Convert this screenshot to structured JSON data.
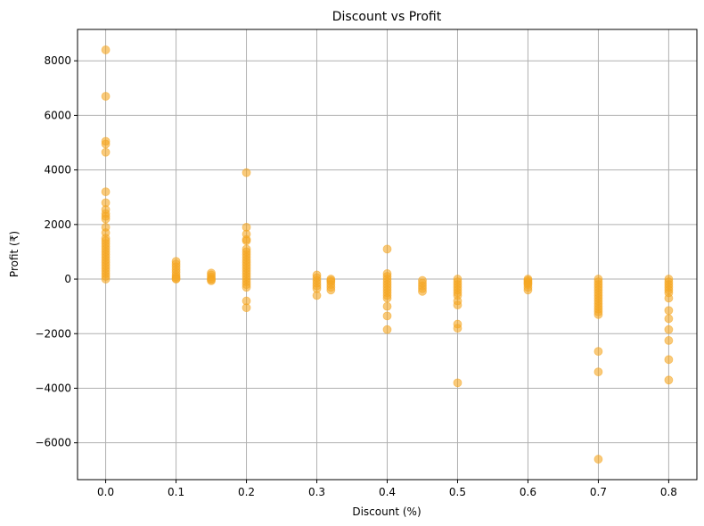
{
  "chart_data": {
    "type": "scatter",
    "title": "Discount vs Profit",
    "xlabel": "Discount (%)",
    "ylabel": "Profit (₹)",
    "xlim": [
      -0.04,
      0.84
    ],
    "ylim": [
      -7350,
      9150
    ],
    "x_ticks": [
      0.0,
      0.1,
      0.2,
      0.3,
      0.4,
      0.5,
      0.6,
      0.7,
      0.8
    ],
    "x_tick_labels": [
      "0.0",
      "0.1",
      "0.2",
      "0.3",
      "0.4",
      "0.5",
      "0.6",
      "0.7",
      "0.8"
    ],
    "y_ticks": [
      -6000,
      -4000,
      -2000,
      0,
      2000,
      4000,
      6000,
      8000
    ],
    "y_tick_labels": [
      "−6000",
      "−4000",
      "−2000",
      "0",
      "2000",
      "4000",
      "6000",
      "8000"
    ],
    "grid": true,
    "marker_color": "#f5a623",
    "marker_opacity": 0.6,
    "points": [
      [
        0.0,
        8400
      ],
      [
        0.0,
        6700
      ],
      [
        0.0,
        5050
      ],
      [
        0.0,
        4950
      ],
      [
        0.0,
        4650
      ],
      [
        0.0,
        3200
      ],
      [
        0.0,
        2800
      ],
      [
        0.0,
        2550
      ],
      [
        0.0,
        2400
      ],
      [
        0.0,
        2300
      ],
      [
        0.0,
        2200
      ],
      [
        0.0,
        1900
      ],
      [
        0.0,
        1700
      ],
      [
        0.0,
        1500
      ],
      [
        0.0,
        1400
      ],
      [
        0.0,
        1300
      ],
      [
        0.0,
        1200
      ],
      [
        0.0,
        1100
      ],
      [
        0.0,
        1000
      ],
      [
        0.0,
        900
      ],
      [
        0.0,
        800
      ],
      [
        0.0,
        700
      ],
      [
        0.0,
        600
      ],
      [
        0.0,
        500
      ],
      [
        0.0,
        400
      ],
      [
        0.0,
        300
      ],
      [
        0.0,
        200
      ],
      [
        0.0,
        100
      ],
      [
        0.0,
        0
      ],
      [
        0.1,
        650
      ],
      [
        0.1,
        550
      ],
      [
        0.1,
        450
      ],
      [
        0.1,
        350
      ],
      [
        0.1,
        250
      ],
      [
        0.1,
        150
      ],
      [
        0.1,
        80
      ],
      [
        0.1,
        20
      ],
      [
        0.1,
        0
      ],
      [
        0.15,
        220
      ],
      [
        0.15,
        150
      ],
      [
        0.15,
        80
      ],
      [
        0.15,
        20
      ],
      [
        0.15,
        -20
      ],
      [
        0.15,
        -60
      ],
      [
        0.2,
        3900
      ],
      [
        0.2,
        1900
      ],
      [
        0.2,
        1650
      ],
      [
        0.2,
        1450
      ],
      [
        0.2,
        1400
      ],
      [
        0.2,
        1100
      ],
      [
        0.2,
        1000
      ],
      [
        0.2,
        900
      ],
      [
        0.2,
        800
      ],
      [
        0.2,
        700
      ],
      [
        0.2,
        600
      ],
      [
        0.2,
        500
      ],
      [
        0.2,
        400
      ],
      [
        0.2,
        300
      ],
      [
        0.2,
        200
      ],
      [
        0.2,
        100
      ],
      [
        0.2,
        0
      ],
      [
        0.2,
        -100
      ],
      [
        0.2,
        -200
      ],
      [
        0.2,
        -300
      ],
      [
        0.2,
        -800
      ],
      [
        0.2,
        -1050
      ],
      [
        0.3,
        150
      ],
      [
        0.3,
        50
      ],
      [
        0.3,
        -50
      ],
      [
        0.3,
        -150
      ],
      [
        0.3,
        -250
      ],
      [
        0.3,
        -350
      ],
      [
        0.3,
        -600
      ],
      [
        0.32,
        0
      ],
      [
        0.32,
        -50
      ],
      [
        0.32,
        -100
      ],
      [
        0.32,
        -200
      ],
      [
        0.32,
        -300
      ],
      [
        0.32,
        -400
      ],
      [
        0.4,
        1100
      ],
      [
        0.4,
        200
      ],
      [
        0.4,
        100
      ],
      [
        0.4,
        0
      ],
      [
        0.4,
        -100
      ],
      [
        0.4,
        -200
      ],
      [
        0.4,
        -300
      ],
      [
        0.4,
        -400
      ],
      [
        0.4,
        -500
      ],
      [
        0.4,
        -600
      ],
      [
        0.4,
        -700
      ],
      [
        0.4,
        -1000
      ],
      [
        0.4,
        -1350
      ],
      [
        0.4,
        -1850
      ],
      [
        0.45,
        -50
      ],
      [
        0.45,
        -150
      ],
      [
        0.45,
        -250
      ],
      [
        0.45,
        -350
      ],
      [
        0.45,
        -450
      ],
      [
        0.5,
        0
      ],
      [
        0.5,
        -100
      ],
      [
        0.5,
        -200
      ],
      [
        0.5,
        -300
      ],
      [
        0.5,
        -400
      ],
      [
        0.5,
        -500
      ],
      [
        0.5,
        -600
      ],
      [
        0.5,
        -800
      ],
      [
        0.5,
        -950
      ],
      [
        0.5,
        -1650
      ],
      [
        0.5,
        -1800
      ],
      [
        0.5,
        -3800
      ],
      [
        0.6,
        0
      ],
      [
        0.6,
        -50
      ],
      [
        0.6,
        -100
      ],
      [
        0.6,
        -150
      ],
      [
        0.6,
        -200
      ],
      [
        0.6,
        -300
      ],
      [
        0.6,
        -400
      ],
      [
        0.7,
        0
      ],
      [
        0.7,
        -100
      ],
      [
        0.7,
        -200
      ],
      [
        0.7,
        -300
      ],
      [
        0.7,
        -400
      ],
      [
        0.7,
        -500
      ],
      [
        0.7,
        -600
      ],
      [
        0.7,
        -700
      ],
      [
        0.7,
        -800
      ],
      [
        0.7,
        -900
      ],
      [
        0.7,
        -1000
      ],
      [
        0.7,
        -1100
      ],
      [
        0.7,
        -1200
      ],
      [
        0.7,
        -1300
      ],
      [
        0.7,
        -2650
      ],
      [
        0.7,
        -3400
      ],
      [
        0.7,
        -6600
      ],
      [
        0.8,
        0
      ],
      [
        0.8,
        -100
      ],
      [
        0.8,
        -200
      ],
      [
        0.8,
        -300
      ],
      [
        0.8,
        -400
      ],
      [
        0.8,
        -500
      ],
      [
        0.8,
        -700
      ],
      [
        0.8,
        -1150
      ],
      [
        0.8,
        -1450
      ],
      [
        0.8,
        -1850
      ],
      [
        0.8,
        -2250
      ],
      [
        0.8,
        -2950
      ],
      [
        0.8,
        -3700
      ]
    ]
  }
}
